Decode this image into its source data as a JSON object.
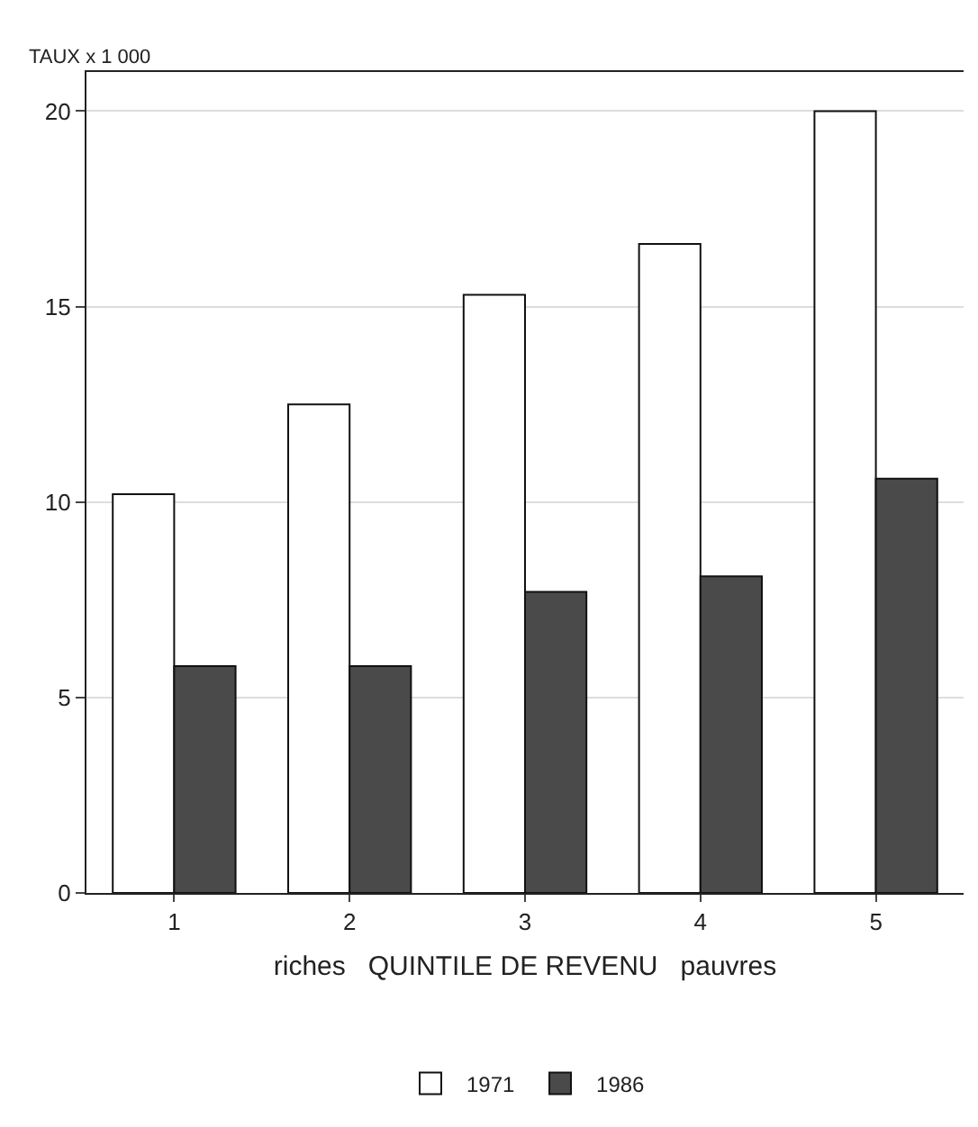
{
  "chart_data": {
    "type": "bar",
    "ylabel": "TAUX x 1 000",
    "xlabel": "riches   QUINTILE DE REVENU   pauvres",
    "categories": [
      "1",
      "2",
      "3",
      "4",
      "5"
    ],
    "series": [
      {
        "name": "1971",
        "color": "#ffffff",
        "values": [
          10.2,
          12.5,
          15.3,
          16.6,
          20.0
        ]
      },
      {
        "name": "1986",
        "color": "#4a4a4a",
        "values": [
          5.8,
          5.8,
          7.7,
          8.1,
          10.6
        ]
      }
    ],
    "ylim": [
      0,
      21
    ],
    "yticks": [
      0,
      5,
      10,
      15,
      20
    ],
    "grid": "y",
    "legend": "bottom"
  }
}
